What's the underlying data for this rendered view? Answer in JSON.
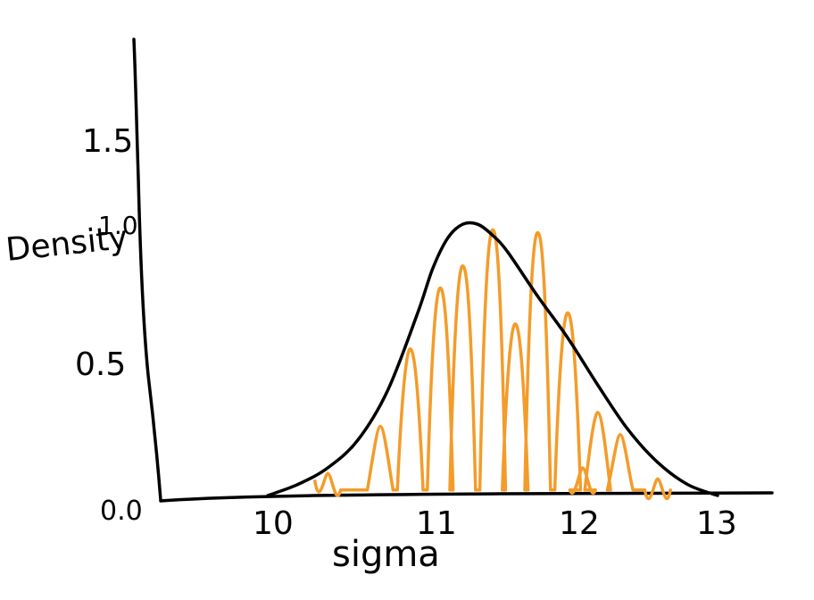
{
  "chart_data": {
    "type": "area",
    "title": "",
    "xlabel": "sigma",
    "ylabel": "Density",
    "xlim": [
      9.3,
      13.3
    ],
    "ylim": [
      0.0,
      1.8
    ],
    "x_ticks": [
      10,
      11,
      12,
      13
    ],
    "x_tick_labels": [
      "10",
      "11",
      "12",
      "13"
    ],
    "y_ticks": [
      0.0,
      0.5,
      1.0,
      1.5
    ],
    "y_tick_labels": [
      "0.0",
      "0.5",
      "1.0",
      "1.5"
    ],
    "grid": false,
    "legend": "none",
    "series": [
      {
        "style": "density-curve",
        "color": "#000000",
        "x": [
          10.0,
          10.2,
          10.4,
          10.6,
          10.8,
          11.0,
          11.1,
          11.2,
          11.3,
          11.4,
          11.5,
          11.6,
          11.8,
          12.0,
          12.2,
          12.4,
          12.6,
          12.8,
          13.0
        ],
        "y": [
          0.0,
          0.04,
          0.1,
          0.2,
          0.38,
          0.66,
          0.82,
          0.93,
          0.98,
          0.98,
          0.94,
          0.88,
          0.72,
          0.57,
          0.4,
          0.24,
          0.12,
          0.04,
          0.0
        ]
      },
      {
        "style": "fill-hatch",
        "color": "#f39c2a",
        "x": [
          10.4,
          10.75,
          10.95,
          11.15,
          11.3,
          11.5,
          11.65,
          11.8,
          12.0,
          12.1,
          12.2,
          12.35,
          12.6
        ],
        "y": [
          0.08,
          0.25,
          0.53,
          0.75,
          0.83,
          0.96,
          0.62,
          0.95,
          0.66,
          0.1,
          0.3,
          0.22,
          0.06
        ]
      }
    ]
  }
}
